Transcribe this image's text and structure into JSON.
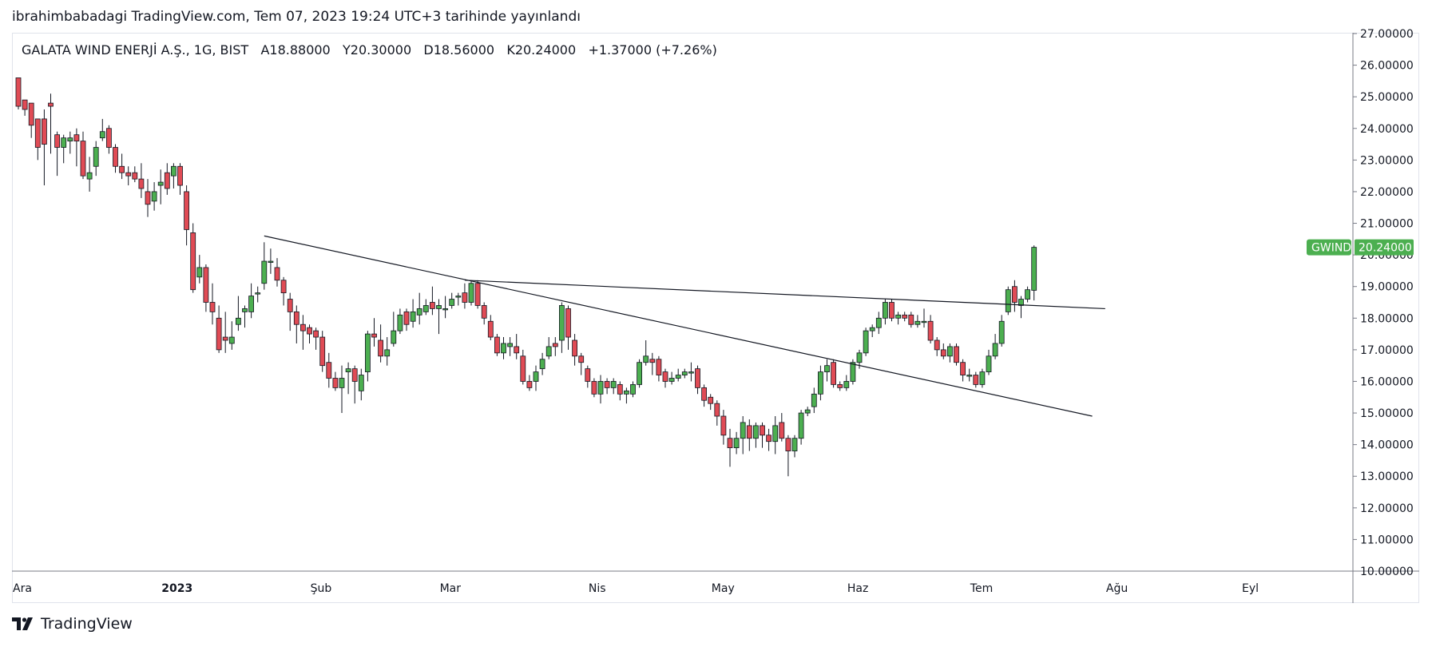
{
  "header": {
    "published": "ibrahimbabadagi TradingView.com, Tem 07, 2023 19:24 UTC+3 tarihinde yayınlandı"
  },
  "legend": {
    "symbol": "GALATA WIND ENERJİ A.Ş., 1G, BIST",
    "open": "A18.88000",
    "high": "Y20.30000",
    "low": "D18.56000",
    "close": "K20.24000",
    "change": "+1.37000 (+7.26%)"
  },
  "price_badge": {
    "ticker": "GWIND",
    "price": "20.24000",
    "color": "#4caf50"
  },
  "footer": {
    "brand": "TradingView"
  },
  "colors": {
    "up": "#4caf50",
    "down": "#e04b55",
    "wick": "#131722",
    "line": "#131722"
  },
  "chart_data": {
    "type": "candlestick",
    "y_ticks": [
      "10.00000",
      "11.00000",
      "12.00000",
      "13.00000",
      "14.00000",
      "15.00000",
      "16.00000",
      "17.00000",
      "18.00000",
      "19.00000",
      "20.00000",
      "21.00000",
      "22.00000",
      "23.00000",
      "24.00000",
      "25.00000",
      "26.00000",
      "27.00000"
    ],
    "ylim": [
      10,
      27
    ],
    "x_ticks": [
      {
        "label": "Ara",
        "bar": 0
      },
      {
        "label": "2023",
        "bar": 23
      },
      {
        "label": "Şub",
        "bar": 46
      },
      {
        "label": "Mar",
        "bar": 66
      },
      {
        "label": "Nis",
        "bar": 89
      },
      {
        "label": "May",
        "bar": 108
      },
      {
        "label": "Haz",
        "bar": 129
      },
      {
        "label": "Tem",
        "bar": 148
      },
      {
        "label": "Ağu",
        "bar": 169
      },
      {
        "label": "Eyl",
        "bar": 190
      }
    ],
    "candles": [
      [
        25.6,
        24.7,
        24.9,
        24.6
      ],
      [
        24.9,
        24.6,
        24.6,
        24.4
      ],
      [
        24.8,
        24.1,
        24.8,
        23.7
      ],
      [
        24.3,
        23.4,
        24.2,
        23.0
      ],
      [
        24.3,
        23.5,
        24.6,
        22.2
      ],
      [
        24.8,
        24.7,
        25.1,
        23.2
      ],
      [
        23.8,
        23.4,
        23.9,
        22.5
      ],
      [
        23.4,
        23.7,
        23.8,
        22.9
      ],
      [
        23.6,
        23.7,
        23.9,
        23.2
      ],
      [
        23.8,
        23.6,
        24.0,
        22.8
      ],
      [
        23.6,
        22.5,
        23.9,
        22.4
      ],
      [
        22.4,
        22.6,
        23.1,
        22.0
      ],
      [
        22.8,
        23.4,
        23.6,
        22.5
      ],
      [
        23.7,
        23.9,
        24.3,
        23.6
      ],
      [
        24.0,
        23.4,
        24.1,
        23.2
      ],
      [
        23.4,
        22.8,
        23.5,
        22.6
      ],
      [
        22.8,
        22.6,
        23.2,
        22.4
      ],
      [
        22.6,
        22.5,
        22.8,
        22.2
      ],
      [
        22.6,
        22.4,
        22.8,
        22.3
      ],
      [
        22.4,
        22.1,
        22.9,
        21.8
      ],
      [
        22.0,
        21.6,
        22.4,
        21.2
      ],
      [
        21.7,
        22.0,
        22.3,
        21.4
      ],
      [
        22.2,
        22.3,
        22.7,
        21.6
      ],
      [
        22.6,
        22.1,
        22.9,
        21.9
      ],
      [
        22.5,
        22.8,
        22.9,
        22.1
      ],
      [
        22.8,
        22.2,
        22.9,
        21.9
      ],
      [
        22.0,
        20.8,
        22.2,
        20.3
      ],
      [
        20.7,
        18.9,
        21.0,
        18.8
      ],
      [
        19.3,
        19.6,
        20.0,
        19.1
      ],
      [
        19.6,
        18.5,
        19.7,
        18.2
      ],
      [
        18.5,
        18.2,
        19.1,
        17.8
      ],
      [
        18.0,
        17.0,
        18.4,
        16.9
      ],
      [
        17.4,
        17.3,
        18.2,
        16.9
      ],
      [
        17.2,
        17.4,
        17.9,
        17.0
      ],
      [
        17.8,
        18.0,
        18.7,
        17.6
      ],
      [
        18.2,
        18.3,
        18.4,
        17.7
      ],
      [
        18.2,
        18.7,
        19.1,
        18.0
      ],
      [
        18.8,
        18.8,
        19.0,
        18.5
      ],
      [
        19.1,
        19.8,
        20.4,
        18.9
      ],
      [
        19.8,
        19.8,
        20.2,
        19.4
      ],
      [
        19.6,
        19.2,
        19.9,
        19.0
      ],
      [
        19.2,
        18.8,
        19.3,
        18.4
      ],
      [
        18.6,
        18.2,
        18.8,
        17.6
      ],
      [
        18.2,
        17.8,
        18.4,
        17.2
      ],
      [
        17.8,
        17.6,
        18.1,
        17.0
      ],
      [
        17.7,
        17.5,
        17.8,
        17.2
      ],
      [
        17.6,
        17.4,
        17.7,
        17.0
      ],
      [
        17.4,
        16.5,
        17.6,
        16.3
      ],
      [
        16.6,
        16.1,
        16.9,
        15.8
      ],
      [
        16.1,
        15.8,
        16.3,
        15.7
      ],
      [
        15.8,
        16.1,
        16.5,
        15.0
      ],
      [
        16.3,
        16.4,
        16.6,
        15.6
      ],
      [
        16.4,
        16.0,
        16.5,
        15.3
      ],
      [
        15.7,
        16.2,
        16.4,
        15.4
      ],
      [
        16.3,
        17.5,
        17.6,
        16.0
      ],
      [
        17.5,
        17.4,
        18.0,
        17.1
      ],
      [
        17.3,
        16.8,
        17.8,
        16.6
      ],
      [
        16.8,
        17.0,
        17.4,
        16.5
      ],
      [
        17.2,
        17.6,
        18.2,
        17.1
      ],
      [
        17.6,
        18.1,
        18.3,
        17.5
      ],
      [
        18.2,
        17.8,
        18.3,
        17.6
      ],
      [
        17.9,
        18.2,
        18.6,
        17.7
      ],
      [
        18.1,
        18.3,
        18.8,
        17.8
      ],
      [
        18.2,
        18.4,
        18.6,
        18.1
      ],
      [
        18.5,
        18.3,
        19.0,
        18.1
      ],
      [
        18.3,
        18.4,
        18.6,
        17.5
      ],
      [
        18.3,
        18.3,
        18.7,
        18.0
      ],
      [
        18.4,
        18.6,
        18.8,
        18.3
      ],
      [
        18.7,
        18.7,
        18.8,
        18.4
      ],
      [
        18.8,
        18.5,
        19.1,
        18.3
      ],
      [
        18.5,
        19.1,
        19.2,
        18.4
      ],
      [
        19.1,
        18.4,
        19.2,
        18.3
      ],
      [
        18.4,
        18.0,
        18.5,
        17.8
      ],
      [
        17.9,
        17.4,
        18.1,
        17.3
      ],
      [
        17.4,
        16.9,
        17.5,
        16.8
      ],
      [
        16.9,
        17.2,
        17.4,
        16.7
      ],
      [
        17.1,
        17.2,
        17.4,
        16.8
      ],
      [
        17.1,
        16.9,
        17.5,
        16.7
      ],
      [
        16.8,
        16.0,
        17.0,
        15.9
      ],
      [
        16.0,
        15.8,
        16.2,
        15.7
      ],
      [
        16.0,
        16.3,
        16.5,
        15.7
      ],
      [
        16.4,
        16.7,
        16.9,
        16.2
      ],
      [
        16.8,
        17.1,
        17.4,
        16.7
      ],
      [
        17.2,
        17.1,
        17.4,
        16.8
      ],
      [
        17.3,
        18.4,
        18.5,
        16.9
      ],
      [
        18.3,
        17.4,
        18.4,
        17.0
      ],
      [
        17.3,
        16.8,
        17.5,
        16.5
      ],
      [
        16.8,
        16.6,
        16.9,
        16.2
      ],
      [
        16.4,
        16.0,
        16.5,
        15.8
      ],
      [
        16.0,
        15.6,
        16.1,
        15.5
      ],
      [
        15.6,
        16.0,
        16.2,
        15.3
      ],
      [
        16.0,
        15.8,
        16.1,
        15.6
      ],
      [
        15.8,
        16.0,
        16.1,
        15.6
      ],
      [
        15.9,
        15.6,
        16.0,
        15.4
      ],
      [
        15.6,
        15.7,
        15.8,
        15.3
      ],
      [
        15.6,
        15.9,
        16.0,
        15.5
      ],
      [
        15.9,
        16.6,
        16.7,
        15.8
      ],
      [
        16.6,
        16.8,
        17.3,
        16.5
      ],
      [
        16.7,
        16.6,
        16.9,
        16.2
      ],
      [
        16.7,
        16.2,
        16.8,
        16.0
      ],
      [
        16.3,
        16.0,
        16.4,
        15.8
      ],
      [
        16.0,
        16.1,
        16.3,
        15.9
      ],
      [
        16.1,
        16.2,
        16.4,
        16.0
      ],
      [
        16.2,
        16.3,
        16.4,
        16.1
      ],
      [
        16.3,
        16.3,
        16.6,
        16.0
      ],
      [
        16.4,
        15.8,
        16.5,
        15.6
      ],
      [
        15.8,
        15.4,
        15.9,
        15.2
      ],
      [
        15.5,
        15.3,
        15.6,
        15.1
      ],
      [
        15.3,
        14.9,
        15.4,
        14.6
      ],
      [
        14.9,
        14.3,
        15.1,
        14.0
      ],
      [
        14.2,
        13.9,
        14.5,
        13.3
      ],
      [
        13.9,
        14.2,
        14.4,
        13.7
      ],
      [
        14.2,
        14.7,
        14.9,
        13.7
      ],
      [
        14.6,
        14.2,
        14.8,
        13.8
      ],
      [
        14.2,
        14.6,
        14.7,
        13.9
      ],
      [
        14.6,
        14.3,
        14.7,
        13.9
      ],
      [
        14.3,
        14.1,
        14.5,
        13.8
      ],
      [
        14.1,
        14.6,
        14.9,
        13.7
      ],
      [
        14.7,
        14.2,
        15.0,
        14.1
      ],
      [
        14.2,
        13.8,
        14.3,
        13.0
      ],
      [
        13.8,
        14.2,
        14.3,
        13.6
      ],
      [
        14.2,
        15.0,
        15.1,
        14.0
      ],
      [
        15.0,
        15.1,
        15.2,
        14.9
      ],
      [
        15.2,
        15.6,
        15.8,
        15.0
      ],
      [
        15.6,
        16.3,
        16.5,
        15.4
      ],
      [
        16.3,
        16.5,
        16.7,
        16.0
      ],
      [
        16.6,
        15.9,
        16.7,
        15.8
      ],
      [
        15.9,
        15.8,
        16.0,
        15.7
      ],
      [
        15.8,
        16.0,
        16.2,
        15.7
      ],
      [
        16.0,
        16.6,
        16.7,
        15.9
      ],
      [
        16.6,
        16.9,
        17.0,
        16.4
      ],
      [
        16.9,
        17.6,
        17.7,
        16.8
      ],
      [
        17.6,
        17.7,
        17.8,
        17.4
      ],
      [
        17.7,
        18.0,
        18.2,
        17.5
      ],
      [
        18.0,
        18.5,
        18.6,
        17.8
      ],
      [
        18.5,
        18.0,
        18.6,
        17.9
      ],
      [
        18.0,
        18.1,
        18.2,
        17.8
      ],
      [
        18.1,
        18.0,
        18.2,
        17.9
      ],
      [
        18.1,
        17.8,
        18.2,
        17.7
      ],
      [
        17.8,
        17.9,
        18.1,
        17.7
      ],
      [
        17.9,
        17.9,
        18.3,
        17.7
      ],
      [
        17.9,
        17.3,
        18.1,
        17.2
      ],
      [
        17.3,
        17.0,
        17.4,
        16.8
      ],
      [
        17.0,
        16.8,
        17.2,
        16.7
      ],
      [
        16.8,
        17.1,
        17.2,
        16.6
      ],
      [
        17.1,
        16.6,
        17.2,
        16.5
      ],
      [
        16.6,
        16.2,
        16.7,
        16.0
      ],
      [
        16.2,
        16.2,
        16.4,
        16.0
      ],
      [
        16.2,
        15.9,
        16.3,
        15.8
      ],
      [
        15.9,
        16.3,
        16.4,
        15.8
      ],
      [
        16.3,
        16.8,
        17.0,
        16.2
      ],
      [
        16.8,
        17.2,
        17.5,
        16.7
      ],
      [
        17.2,
        17.9,
        18.1,
        17.1
      ],
      [
        18.2,
        18.9,
        19.0,
        18.1
      ],
      [
        19.0,
        18.5,
        19.2,
        18.2
      ],
      [
        18.4,
        18.6,
        18.7,
        18.0
      ],
      [
        18.6,
        18.9,
        19.0,
        18.5
      ],
      [
        18.88,
        20.24,
        20.3,
        18.56
      ]
    ],
    "trendlines": [
      {
        "from": {
          "bar": 38,
          "price": 20.6
        },
        "to": {
          "bar": 166,
          "price": 14.9
        }
      },
      {
        "from": {
          "bar": 69,
          "price": 19.2
        },
        "to": {
          "bar": 168,
          "price": 18.3
        }
      }
    ]
  }
}
